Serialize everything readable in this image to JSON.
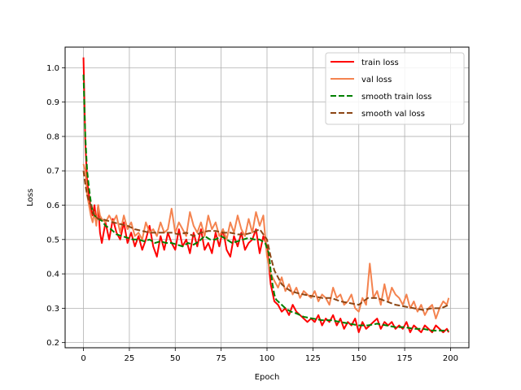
{
  "chart_data": {
    "type": "line",
    "title": "",
    "xlabel": "Epoch",
    "ylabel": "Loss",
    "xlim": [
      -10,
      210
    ],
    "ylim": [
      0.185,
      1.06
    ],
    "xticks": [
      0,
      25,
      50,
      75,
      100,
      125,
      150,
      175,
      200
    ],
    "yticks": [
      0.2,
      0.3,
      0.4,
      0.5,
      0.6,
      0.7,
      0.8,
      0.9,
      1.0
    ],
    "grid": true,
    "legend_position": "top-right",
    "series": [
      {
        "name": "train loss",
        "color": "#ff0000",
        "dash": "solid",
        "x": [
          0,
          1,
          2,
          3,
          4,
          5,
          6,
          7,
          8,
          9,
          10,
          12,
          14,
          16,
          18,
          20,
          22,
          24,
          26,
          28,
          30,
          32,
          34,
          36,
          38,
          40,
          42,
          44,
          46,
          48,
          50,
          52,
          54,
          56,
          58,
          60,
          62,
          64,
          66,
          68,
          70,
          72,
          74,
          76,
          78,
          80,
          82,
          84,
          86,
          88,
          90,
          92,
          94,
          96,
          98,
          100,
          102,
          104,
          106,
          108,
          110,
          112,
          114,
          116,
          118,
          120,
          122,
          124,
          126,
          128,
          130,
          132,
          134,
          136,
          138,
          140,
          142,
          144,
          146,
          148,
          150,
          152,
          154,
          156,
          158,
          160,
          162,
          164,
          166,
          168,
          170,
          172,
          174,
          176,
          178,
          180,
          182,
          184,
          186,
          188,
          190,
          192,
          194,
          196,
          198,
          199
        ],
        "y": [
          1.03,
          0.78,
          0.67,
          0.63,
          0.59,
          0.57,
          0.6,
          0.55,
          0.6,
          0.52,
          0.49,
          0.55,
          0.5,
          0.56,
          0.52,
          0.5,
          0.55,
          0.49,
          0.52,
          0.48,
          0.51,
          0.47,
          0.5,
          0.54,
          0.48,
          0.45,
          0.51,
          0.47,
          0.52,
          0.49,
          0.47,
          0.53,
          0.48,
          0.5,
          0.46,
          0.52,
          0.48,
          0.53,
          0.47,
          0.49,
          0.46,
          0.52,
          0.48,
          0.53,
          0.47,
          0.45,
          0.51,
          0.48,
          0.52,
          0.47,
          0.49,
          0.5,
          0.53,
          0.46,
          0.51,
          0.48,
          0.37,
          0.32,
          0.31,
          0.29,
          0.3,
          0.28,
          0.31,
          0.29,
          0.28,
          0.27,
          0.26,
          0.27,
          0.26,
          0.28,
          0.25,
          0.27,
          0.26,
          0.28,
          0.25,
          0.27,
          0.24,
          0.26,
          0.25,
          0.27,
          0.23,
          0.26,
          0.24,
          0.25,
          0.26,
          0.27,
          0.24,
          0.26,
          0.25,
          0.26,
          0.24,
          0.25,
          0.24,
          0.26,
          0.23,
          0.25,
          0.24,
          0.23,
          0.25,
          0.24,
          0.23,
          0.25,
          0.24,
          0.23,
          0.24,
          0.23
        ]
      },
      {
        "name": "val loss",
        "color": "#f4834f",
        "dash": "solid",
        "x": [
          0,
          1,
          2,
          3,
          4,
          5,
          6,
          7,
          8,
          9,
          10,
          12,
          14,
          16,
          18,
          20,
          22,
          24,
          26,
          28,
          30,
          32,
          34,
          36,
          38,
          40,
          42,
          44,
          46,
          48,
          50,
          52,
          54,
          56,
          58,
          60,
          62,
          64,
          66,
          68,
          70,
          72,
          74,
          76,
          78,
          80,
          82,
          84,
          86,
          88,
          90,
          92,
          94,
          96,
          98,
          100,
          102,
          104,
          106,
          108,
          110,
          112,
          114,
          116,
          118,
          120,
          122,
          124,
          126,
          128,
          130,
          132,
          134,
          136,
          138,
          140,
          142,
          144,
          146,
          148,
          150,
          152,
          154,
          156,
          158,
          160,
          162,
          164,
          166,
          168,
          170,
          172,
          174,
          176,
          178,
          180,
          182,
          184,
          186,
          188,
          190,
          192,
          194,
          196,
          198,
          199
        ],
        "y": [
          0.72,
          0.7,
          0.63,
          0.6,
          0.57,
          0.55,
          0.58,
          0.54,
          0.6,
          0.57,
          0.56,
          0.55,
          0.57,
          0.55,
          0.57,
          0.52,
          0.57,
          0.53,
          0.55,
          0.51,
          0.52,
          0.5,
          0.55,
          0.52,
          0.53,
          0.51,
          0.55,
          0.52,
          0.53,
          0.59,
          0.52,
          0.55,
          0.53,
          0.51,
          0.58,
          0.54,
          0.52,
          0.55,
          0.51,
          0.57,
          0.53,
          0.55,
          0.51,
          0.53,
          0.5,
          0.55,
          0.52,
          0.57,
          0.53,
          0.51,
          0.56,
          0.52,
          0.58,
          0.54,
          0.57,
          0.45,
          0.4,
          0.38,
          0.36,
          0.39,
          0.35,
          0.37,
          0.34,
          0.36,
          0.33,
          0.35,
          0.34,
          0.33,
          0.35,
          0.32,
          0.34,
          0.33,
          0.31,
          0.36,
          0.33,
          0.34,
          0.31,
          0.32,
          0.34,
          0.3,
          0.29,
          0.33,
          0.31,
          0.43,
          0.33,
          0.35,
          0.31,
          0.37,
          0.32,
          0.36,
          0.34,
          0.33,
          0.31,
          0.34,
          0.3,
          0.32,
          0.29,
          0.31,
          0.28,
          0.3,
          0.31,
          0.27,
          0.3,
          0.32,
          0.31,
          0.33
        ]
      },
      {
        "name": "smooth train loss",
        "color": "#008000",
        "dash": "dashed",
        "x": [
          0,
          1,
          2,
          3,
          4,
          5,
          6,
          7,
          8,
          10,
          12,
          15,
          18,
          21,
          24,
          27,
          30,
          33,
          36,
          39,
          42,
          45,
          48,
          51,
          54,
          57,
          60,
          63,
          66,
          69,
          72,
          75,
          78,
          81,
          84,
          87,
          90,
          93,
          96,
          99,
          101,
          102,
          103,
          104,
          105,
          107,
          110,
          113,
          116,
          120,
          125,
          130,
          135,
          140,
          145,
          150,
          155,
          160,
          165,
          170,
          175,
          180,
          185,
          190,
          195,
          199
        ],
        "y": [
          0.98,
          0.8,
          0.7,
          0.65,
          0.61,
          0.58,
          0.57,
          0.565,
          0.56,
          0.555,
          0.54,
          0.53,
          0.515,
          0.51,
          0.505,
          0.5,
          0.5,
          0.495,
          0.5,
          0.49,
          0.495,
          0.49,
          0.49,
          0.485,
          0.48,
          0.49,
          0.485,
          0.495,
          0.51,
          0.5,
          0.5,
          0.51,
          0.5,
          0.49,
          0.495,
          0.5,
          0.505,
          0.5,
          0.5,
          0.49,
          0.46,
          0.41,
          0.37,
          0.34,
          0.325,
          0.315,
          0.3,
          0.29,
          0.285,
          0.275,
          0.27,
          0.265,
          0.265,
          0.26,
          0.255,
          0.25,
          0.25,
          0.255,
          0.25,
          0.245,
          0.245,
          0.24,
          0.24,
          0.235,
          0.235,
          0.235
        ]
      },
      {
        "name": "smooth val loss",
        "color": "#8b4513",
        "dash": "dashed",
        "x": [
          0,
          1,
          2,
          3,
          4,
          5,
          6,
          8,
          10,
          13,
          16,
          20,
          24,
          28,
          32,
          36,
          40,
          44,
          48,
          52,
          56,
          60,
          64,
          68,
          72,
          76,
          80,
          84,
          88,
          92,
          96,
          100,
          102,
          104,
          106,
          108,
          110,
          113,
          116,
          120,
          125,
          130,
          135,
          140,
          145,
          150,
          155,
          160,
          165,
          170,
          175,
          180,
          185,
          190,
          195,
          199
        ],
        "y": [
          0.7,
          0.66,
          0.63,
          0.61,
          0.6,
          0.59,
          0.57,
          0.56,
          0.56,
          0.555,
          0.55,
          0.545,
          0.54,
          0.53,
          0.525,
          0.52,
          0.52,
          0.52,
          0.52,
          0.515,
          0.52,
          0.51,
          0.52,
          0.525,
          0.525,
          0.52,
          0.52,
          0.515,
          0.515,
          0.52,
          0.53,
          0.5,
          0.45,
          0.41,
          0.39,
          0.37,
          0.36,
          0.35,
          0.345,
          0.34,
          0.335,
          0.33,
          0.33,
          0.32,
          0.315,
          0.31,
          0.33,
          0.33,
          0.32,
          0.31,
          0.305,
          0.3,
          0.295,
          0.3,
          0.3,
          0.31
        ]
      }
    ]
  }
}
